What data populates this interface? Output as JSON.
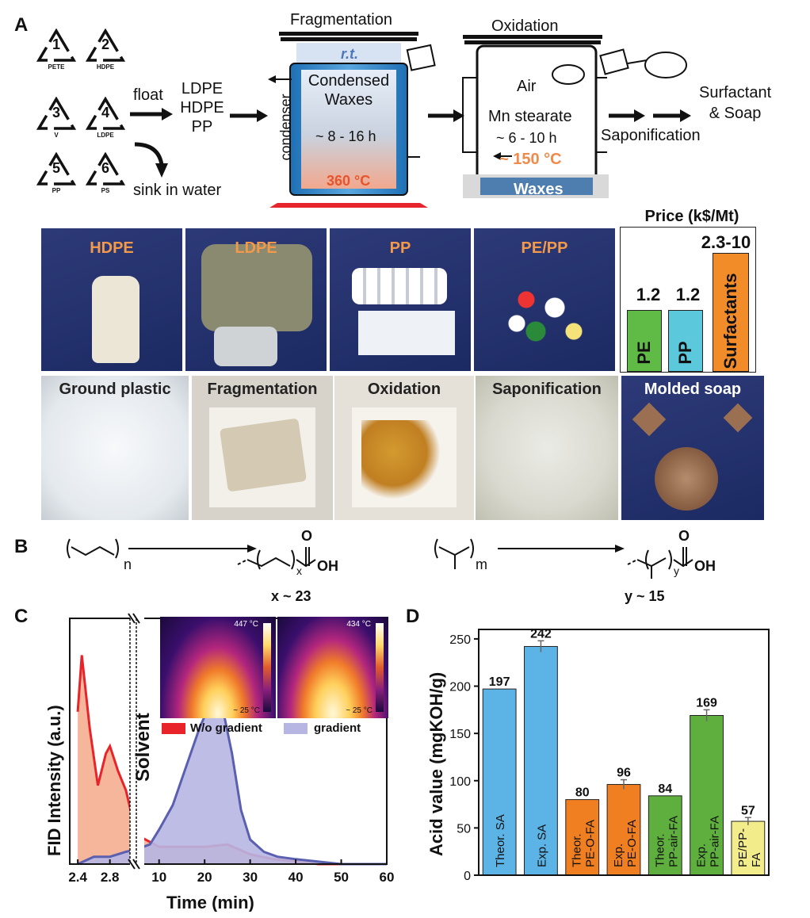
{
  "panels": {
    "A": "A",
    "B": "B",
    "C": "C",
    "D": "D"
  },
  "recycling_codes": [
    {
      "num": "1",
      "code": "PETE"
    },
    {
      "num": "2",
      "code": "HDPE"
    },
    {
      "num": "3",
      "code": "V"
    },
    {
      "num": "4",
      "code": "LDPE"
    },
    {
      "num": "5",
      "code": "PP"
    },
    {
      "num": "6",
      "code": "PS"
    }
  ],
  "flow": {
    "float": "float",
    "sink": "sink in water",
    "polymers": [
      "LDPE",
      "HDPE",
      "PP"
    ],
    "fragmentation_title": "Fragmentation",
    "rt": "r.t.",
    "condensed": [
      "Condensed",
      "Waxes"
    ],
    "frag_time": "~ 8 - 16 h",
    "condenser": "condenser",
    "frag_temp": "360 °C",
    "oxidation_title": "Oxidation",
    "air": "Air",
    "catalyst": "Mn stearate",
    "ox_time": "~ 6 - 10 h",
    "ox_temp": "~ 150 °C",
    "waxes": "Waxes",
    "saponification": "Saponification",
    "product": [
      "Surfactant",
      "& Soap"
    ]
  },
  "photos_top": [
    "HDPE",
    "LDPE",
    "PP",
    "PE/PP"
  ],
  "photos_bottom": [
    "Ground plastic",
    "Fragmentation",
    "Oxidation",
    "Saponification",
    "Molded soap"
  ],
  "price": {
    "title": "Price (k$/Mt)",
    "bars": [
      {
        "label": "PE",
        "value": "1.2",
        "color": "#5fba46"
      },
      {
        "label": "PP",
        "value": "1.2",
        "color": "#5bc8dc"
      },
      {
        "label": "Surfactants",
        "value": "2.3-10",
        "color": "#f28c28"
      }
    ]
  },
  "scheme": {
    "n": "n",
    "x": "x",
    "m": "m",
    "y": "y",
    "O": "O",
    "OH": "OH",
    "x_label": "x ~ 23",
    "y_label": "y ~ 15"
  },
  "chart_data": [
    {
      "type": "area",
      "panel": "C",
      "ylabel": "FID Intensity (a.u.)",
      "xlabel": "Time (min)",
      "x_ticks": [
        "2.4",
        "2.8",
        "10",
        "20",
        "30",
        "40",
        "50",
        "60"
      ],
      "annotation": "Solvent",
      "series": [
        {
          "name": "W/o gradient",
          "color": "#e8242a",
          "fill": "#f5a98a",
          "x": [
            2.4,
            2.45,
            2.55,
            2.65,
            2.75,
            2.8,
            2.9,
            3.0,
            5,
            10,
            15,
            20,
            25,
            30,
            35,
            40,
            45,
            50,
            60
          ],
          "y": [
            0.62,
            0.85,
            0.55,
            0.32,
            0.45,
            0.48,
            0.38,
            0.3,
            0.12,
            0.07,
            0.07,
            0.07,
            0.08,
            0.04,
            0.02,
            0.01,
            0.0,
            0.0,
            0.0
          ]
        },
        {
          "name": "gradient",
          "color": "#5b5fb0",
          "fill": "#b7b6e3",
          "x": [
            2.4,
            2.6,
            2.8,
            3.0,
            5,
            8,
            10,
            13,
            16,
            19,
            21,
            22,
            24,
            26,
            28,
            30,
            33,
            36,
            40,
            45,
            50,
            55,
            60
          ],
          "y": [
            0.0,
            0.03,
            0.03,
            0.05,
            0.06,
            0.08,
            0.14,
            0.24,
            0.4,
            0.56,
            0.64,
            0.65,
            0.63,
            0.45,
            0.22,
            0.1,
            0.05,
            0.03,
            0.02,
            0.01,
            0.0,
            0.0,
            0.0
          ]
        }
      ],
      "inset": {
        "left_max_temp": "447 °C",
        "right_max_temp": "434 °C",
        "min_temp": "~ 25 °C"
      }
    },
    {
      "type": "bar",
      "panel": "D",
      "ylabel": "Acid value (mgKOH/g)",
      "ylim": [
        0,
        260
      ],
      "y_ticks": [
        0,
        50,
        100,
        150,
        200,
        250
      ],
      "categories": [
        "Theor. SA",
        "Exp. SA",
        "Theor. PE-O-FA",
        "Exp. PE-O-FA",
        "Theor. PP-air-FA",
        "Exp. PP-air-FA",
        "PE/PP-FA"
      ],
      "values": [
        197,
        242,
        80,
        96,
        84,
        169,
        57
      ],
      "value_labels": [
        "197",
        "242",
        "80",
        "96",
        "84",
        "169",
        "57"
      ],
      "colors": [
        "#5bb4e5",
        "#5bb4e5",
        "#f07f22",
        "#f07f22",
        "#5faf3f",
        "#5faf3f",
        "#f3ec8a"
      ],
      "error": [
        0,
        6,
        0,
        5,
        0,
        6,
        4
      ]
    }
  ]
}
